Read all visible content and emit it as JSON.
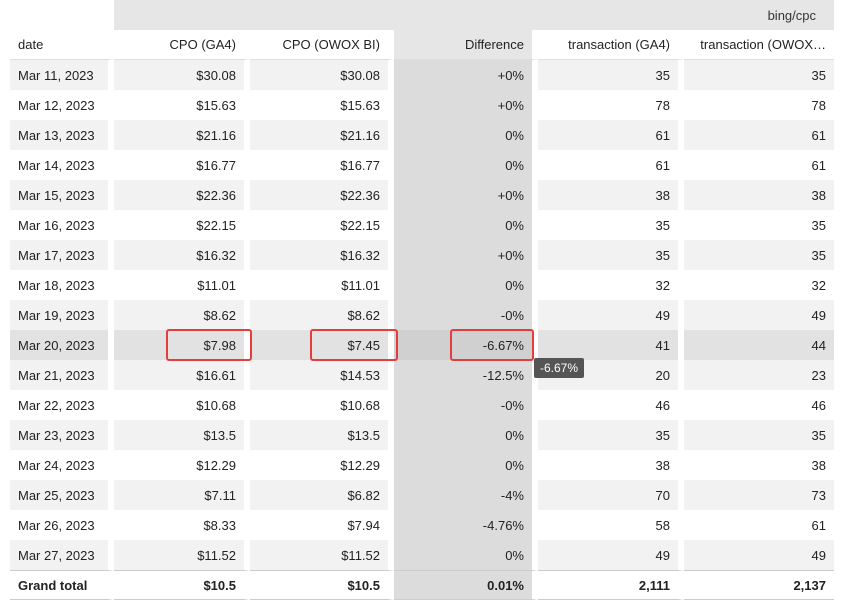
{
  "header_group": "bing/cpc",
  "columns": [
    "date",
    "CPO (GA4)",
    "CPO (OWOX BI)",
    "Difference",
    "transaction (GA4)",
    "transaction (OWOX…"
  ],
  "rows": [
    [
      "Mar 11, 2023",
      "$30.08",
      "$30.08",
      "+0%",
      "35",
      "35"
    ],
    [
      "Mar 12, 2023",
      "$15.63",
      "$15.63",
      "+0%",
      "78",
      "78"
    ],
    [
      "Mar 13, 2023",
      "$21.16",
      "$21.16",
      "0%",
      "61",
      "61"
    ],
    [
      "Mar 14, 2023",
      "$16.77",
      "$16.77",
      "0%",
      "61",
      "61"
    ],
    [
      "Mar 15, 2023",
      "$22.36",
      "$22.36",
      "+0%",
      "38",
      "38"
    ],
    [
      "Mar 16, 2023",
      "$22.15",
      "$22.15",
      "0%",
      "35",
      "35"
    ],
    [
      "Mar 17, 2023",
      "$16.32",
      "$16.32",
      "+0%",
      "35",
      "35"
    ],
    [
      "Mar 18, 2023",
      "$11.01",
      "$11.01",
      "0%",
      "32",
      "32"
    ],
    [
      "Mar 19, 2023",
      "$8.62",
      "$8.62",
      "-0%",
      "49",
      "49"
    ],
    [
      "Mar 20, 2023",
      "$7.98",
      "$7.45",
      "-6.67%",
      "41",
      "44"
    ],
    [
      "Mar 21, 2023",
      "$16.61",
      "$14.53",
      "-12.5%",
      "20",
      "23"
    ],
    [
      "Mar 22, 2023",
      "$10.68",
      "$10.68",
      "-0%",
      "46",
      "46"
    ],
    [
      "Mar 23, 2023",
      "$13.5",
      "$13.5",
      "0%",
      "35",
      "35"
    ],
    [
      "Mar 24, 2023",
      "$12.29",
      "$12.29",
      "0%",
      "38",
      "38"
    ],
    [
      "Mar 25, 2023",
      "$7.11",
      "$6.82",
      "-4%",
      "70",
      "73"
    ],
    [
      "Mar 26, 2023",
      "$8.33",
      "$7.94",
      "-4.76%",
      "58",
      "61"
    ],
    [
      "Mar 27, 2023",
      "$11.52",
      "$11.52",
      "0%",
      "49",
      "49"
    ]
  ],
  "total": [
    "Grand total",
    "$10.5",
    "$10.5",
    "0.01%",
    "2,111",
    "2,137"
  ],
  "highlight_row": 9,
  "tooltip": "-6.67%",
  "colors": {
    "highlight_border": "#e33d3d",
    "diff_column_bg": "#dcdcdc",
    "stripe": "#f2f2f2"
  }
}
